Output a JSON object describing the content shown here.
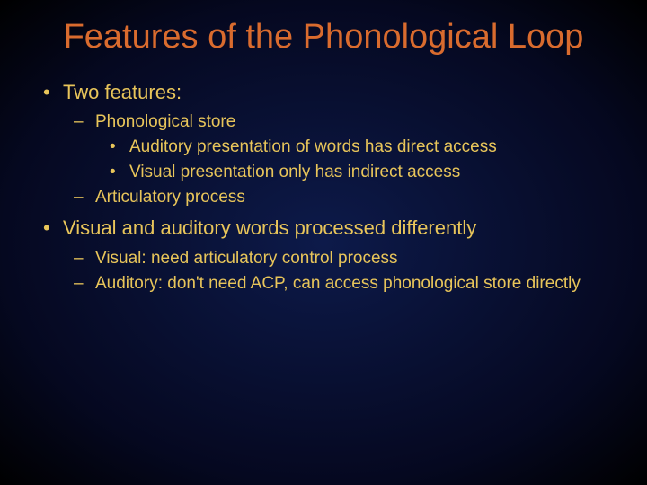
{
  "colors": {
    "title": "#d96b2e",
    "body": "#e8c55a",
    "bg_center": "#0d1a4a",
    "bg_edge": "#000000"
  },
  "typography": {
    "title_fontsize": 38,
    "level1_fontsize": 22,
    "level2_fontsize": 19,
    "level3_fontsize": 19,
    "font_family": "Verdana"
  },
  "title": "Features of the Phonological Loop",
  "bullets": [
    {
      "text": "Two features:",
      "children": [
        {
          "text": "Phonological store",
          "children": [
            {
              "text": "Auditory presentation of words has direct access"
            },
            {
              "text": "Visual presentation only has indirect access"
            }
          ]
        },
        {
          "text": "Articulatory process"
        }
      ]
    },
    {
      "text": "Visual and auditory words processed differently",
      "children": [
        {
          "text": "Visual:  need articulatory control process"
        },
        {
          "text": "Auditory:  don't need ACP, can access phonological store directly"
        }
      ]
    }
  ]
}
